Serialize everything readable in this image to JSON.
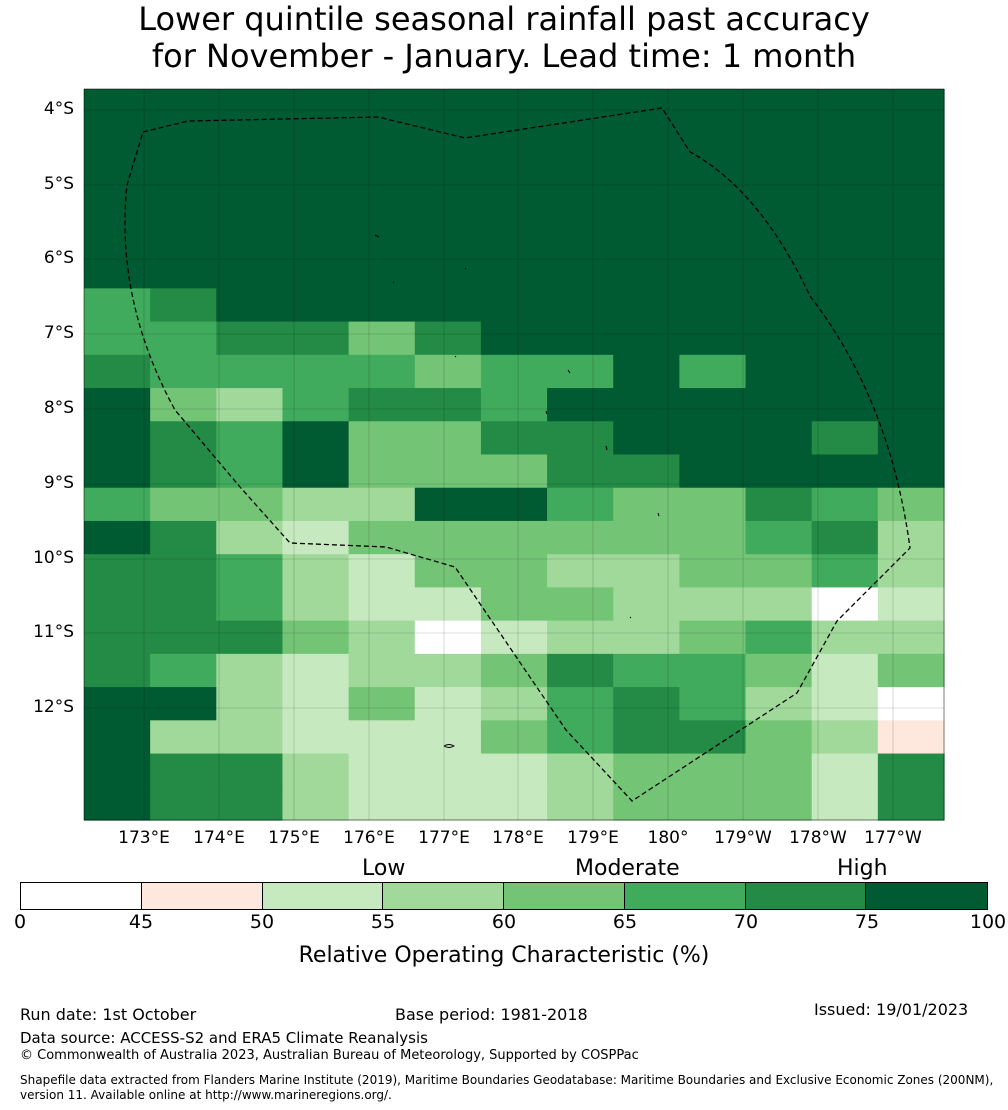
{
  "title": {
    "line1": "Lower quintile seasonal rainfall past accuracy",
    "line2": "for November - January. Lead time: 1 month"
  },
  "map": {
    "lat_labels": [
      "4°S",
      "5°S",
      "6°S",
      "7°S",
      "8°S",
      "9°S",
      "10°S",
      "11°S",
      "12°S"
    ],
    "lon_labels": [
      "173°E",
      "174°E",
      "175°E",
      "176°E",
      "177°E",
      "178°E",
      "179°E",
      "180°",
      "179°W",
      "178°W",
      "177°W"
    ],
    "grid_rows": [
      "7777777777777",
      "7777777777777",
      "7777777777777",
      "7777777777777",
      "7777777777777",
      "7777777777777",
      "5677777777777",
      "5566467777777",
      "6555545575777",
      "7435665777777",
      "7657446677767",
      "7657444667777",
      "5443377544654",
      "7632444444563",
      "6653244334453",
      "6653224433302",
      "6664302334533",
      "6532334655424",
      "7732423565320",
      "7332224566431",
      "7663222344426",
      "7663222344426"
    ],
    "boundary_color": "#000000"
  },
  "legend": {
    "categories": [
      "Low",
      "Moderate",
      "High"
    ],
    "ticks": [
      "0",
      "45",
      "50",
      "55",
      "60",
      "65",
      "70",
      "75",
      "100"
    ],
    "colors": [
      "#ffffff",
      "#fee8de",
      "#c7e9c0",
      "#a1d99b",
      "#74c476",
      "#41ab5d",
      "#238b45",
      "#005a32"
    ],
    "label": "Relative Operating Characteristic (%)"
  },
  "footer": {
    "run_date": "Run date: 1st October",
    "base_period": "Base period: 1981-2018",
    "issued": "Issued: 19/01/2023",
    "data_source": "Data source: ACCESS-S2 and ERA5 Climate Reanalysis",
    "copyright": "© Commonwealth of Australia 2023, Australian Bureau of Meteorology, Supported by COSPPac",
    "shapefile_line1": "Shapefile data extracted from Flanders Marine Institute (2019), Maritime Boundaries Geodatabase: Maritime Boundaries and Exclusive Economic Zones (200NM),",
    "shapefile_line2": "version 11. Available online at http://www.marineregions.org/."
  }
}
